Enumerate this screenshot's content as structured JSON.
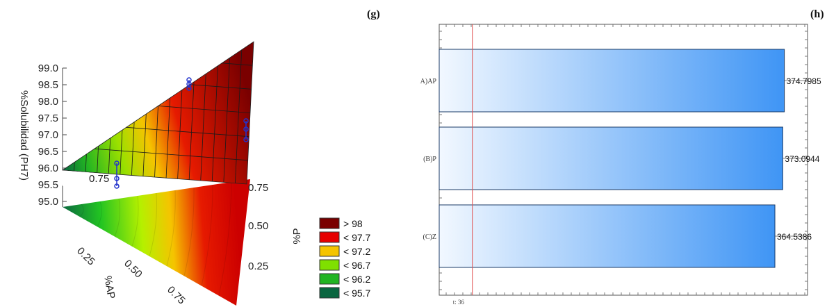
{
  "panel_g": {
    "label": "(g)",
    "z_label": "%Solubilidad (PH7)",
    "z_ticks": [
      "99.0",
      "98.5",
      "98.0",
      "97.5",
      "97.0",
      "96.5",
      "96.0",
      "95.5",
      "95.0"
    ],
    "z_range": [
      95.0,
      99.0
    ],
    "ap_label": "%AP",
    "ap_ticks": [
      "0.25",
      "0.50",
      "0.75"
    ],
    "p_label": "%P",
    "p_ticks": [
      "0.75",
      "0.50",
      "0.25"
    ],
    "corner_label": "0.75",
    "legend": [
      {
        "label": "> 98",
        "color": "#7a0000"
      },
      {
        "label": "< 97.7",
        "color": "#e60000"
      },
      {
        "label": "< 97.2",
        "color": "#f5c400"
      },
      {
        "label": "< 96.7",
        "color": "#7fe000"
      },
      {
        "label": "< 96.2",
        "color": "#22b422"
      },
      {
        "label": "< 95.7",
        "color": "#0a6640"
      }
    ]
  },
  "chart_data": {
    "type": "bar",
    "title": "(h)",
    "categories": [
      "A)AP",
      "(B)P",
      "(C)Z"
    ],
    "values": [
      374.7985,
      373.0944,
      364.5386
    ],
    "value_labels": [
      "374.7985",
      "373.0944",
      "364.5386"
    ],
    "reference_line": {
      "value": 36,
      "label": "t: 36"
    },
    "xlim": [
      0,
      400
    ],
    "orientation": "horizontal",
    "colors": {
      "bar_start": "#f2f8ff",
      "bar_end": "#3f95f5",
      "reference": "#e05050"
    }
  }
}
